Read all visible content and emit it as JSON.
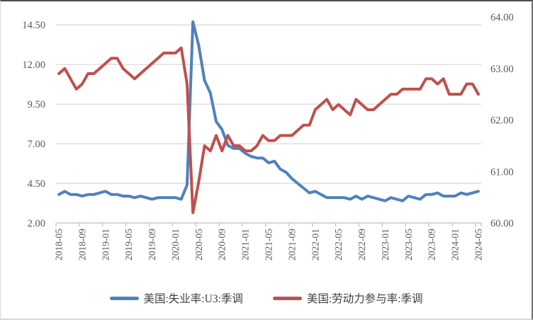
{
  "chart_data": {
    "type": "line",
    "title": "",
    "xlabel": "",
    "ylabel_left": "",
    "ylabel_right": "",
    "grid": true,
    "legend_position": "bottom",
    "x": [
      "2018-05",
      "2018-06",
      "2018-07",
      "2018-08",
      "2018-09",
      "2018-10",
      "2018-11",
      "2018-12",
      "2019-01",
      "2019-02",
      "2019-03",
      "2019-04",
      "2019-05",
      "2019-06",
      "2019-07",
      "2019-08",
      "2019-09",
      "2019-10",
      "2019-11",
      "2019-12",
      "2020-01",
      "2020-02",
      "2020-03",
      "2020-04",
      "2020-05",
      "2020-06",
      "2020-07",
      "2020-08",
      "2020-09",
      "2020-10",
      "2020-11",
      "2020-12",
      "2021-01",
      "2021-02",
      "2021-03",
      "2021-04",
      "2021-05",
      "2021-06",
      "2021-07",
      "2021-08",
      "2021-09",
      "2021-10",
      "2021-11",
      "2021-12",
      "2022-01",
      "2022-02",
      "2022-03",
      "2022-04",
      "2022-05",
      "2022-06",
      "2022-07",
      "2022-08",
      "2022-09",
      "2022-10",
      "2022-11",
      "2022-12",
      "2023-01",
      "2023-02",
      "2023-03",
      "2023-04",
      "2023-05",
      "2023-06",
      "2023-07",
      "2023-08",
      "2023-09",
      "2023-10",
      "2023-11",
      "2023-12",
      "2024-01",
      "2024-02",
      "2024-03",
      "2024-04",
      "2024-05"
    ],
    "x_tick_labels": [
      "2018-05",
      "2018-09",
      "2019-01",
      "2019-05",
      "2019-09",
      "2020-01",
      "2020-05",
      "2020-09",
      "2021-01",
      "2021-05",
      "2021-09",
      "2022-01",
      "2022-05",
      "2022-09",
      "2023-01",
      "2023-05",
      "2023-09",
      "2024-01",
      "2024-05"
    ],
    "x_label_every": 4,
    "left_axis": {
      "min": 2.0,
      "max": 15.0,
      "tick_values": [
        2.0,
        4.5,
        7.0,
        9.5,
        12.0,
        14.5
      ],
      "tick_labels": [
        "2.00",
        "4.50",
        "7.00",
        "9.50",
        "12.00",
        "14.50"
      ]
    },
    "right_axis": {
      "min": 60.0,
      "max": 64.0,
      "tick_values": [
        60,
        61,
        62,
        63,
        64
      ],
      "tick_labels": [
        "60.00",
        "61.00",
        "62.00",
        "63.00",
        "64.00"
      ]
    },
    "series": [
      {
        "name": "美国:失业率:U3:季调",
        "axis": "left",
        "color": "#4F81BD",
        "values": [
          3.8,
          4.0,
          3.8,
          3.8,
          3.7,
          3.8,
          3.8,
          3.9,
          4.0,
          3.8,
          3.8,
          3.7,
          3.7,
          3.6,
          3.7,
          3.6,
          3.5,
          3.6,
          3.6,
          3.6,
          3.6,
          3.5,
          4.4,
          14.7,
          13.2,
          11.0,
          10.2,
          8.4,
          7.9,
          6.9,
          6.7,
          6.7,
          6.4,
          6.2,
          6.1,
          6.1,
          5.8,
          5.9,
          5.4,
          5.2,
          4.8,
          4.5,
          4.2,
          3.9,
          4.0,
          3.8,
          3.6,
          3.6,
          3.6,
          3.6,
          3.5,
          3.7,
          3.5,
          3.7,
          3.6,
          3.5,
          3.4,
          3.6,
          3.5,
          3.4,
          3.7,
          3.6,
          3.5,
          3.8,
          3.8,
          3.9,
          3.7,
          3.7,
          3.7,
          3.9,
          3.8,
          3.9,
          4.0
        ]
      },
      {
        "name": "美国:劳动力参与率:季调",
        "axis": "right",
        "color": "#C0504D",
        "values": [
          62.9,
          63.0,
          62.8,
          62.6,
          62.7,
          62.9,
          62.9,
          63.0,
          63.1,
          63.2,
          63.2,
          63.0,
          62.9,
          62.8,
          62.9,
          63.0,
          63.1,
          63.2,
          63.3,
          63.3,
          63.3,
          63.4,
          62.7,
          60.2,
          60.8,
          61.5,
          61.4,
          61.7,
          61.4,
          61.7,
          61.5,
          61.5,
          61.4,
          61.4,
          61.5,
          61.7,
          61.6,
          61.6,
          61.7,
          61.7,
          61.7,
          61.8,
          61.9,
          61.9,
          62.2,
          62.3,
          62.4,
          62.2,
          62.3,
          62.2,
          62.1,
          62.4,
          62.3,
          62.2,
          62.2,
          62.3,
          62.4,
          62.5,
          62.5,
          62.6,
          62.6,
          62.6,
          62.6,
          62.8,
          62.8,
          62.7,
          62.8,
          62.5,
          62.5,
          62.5,
          62.7,
          62.7,
          62.5
        ]
      }
    ]
  },
  "colors": {
    "series1": "#4F81BD",
    "series2": "#C0504D",
    "gridline": "#D9D9D9",
    "axis_line": "#BFBFBF",
    "tick_label": "#595959"
  }
}
